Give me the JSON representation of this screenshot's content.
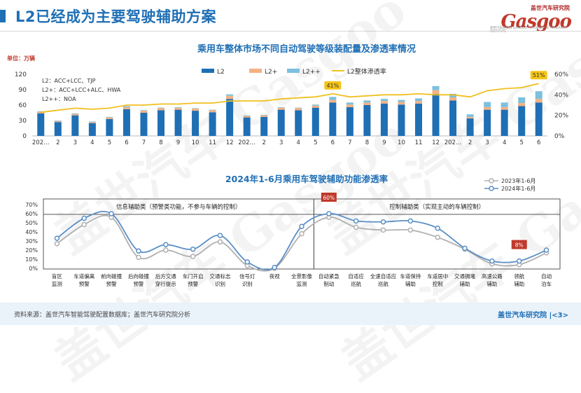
{
  "header": {
    "title": "L2已经成为主要驾驶辅助方案",
    "logo_top": "盖世汽车研究院",
    "logo_word": "Gasgoo",
    "logo_sub": "盖世汽车研究院 GASGOO AUTOMOTIVE RESEARCH INSTITUTE"
  },
  "watermark": "盖世汽车 Gasgoo",
  "footer": {
    "source": "资料来源：盖世汽车智能驾驶配置数据库；盖世汽车研究院分析",
    "page": "盖世汽车研究院 |<3>"
  },
  "chart_data": [
    {
      "type": "bar",
      "title": "乘用车整体市场不同自动驾驶等级装配量及渗透率情况",
      "unit_label": "单位：万辆",
      "ylim": [
        0,
        120
      ],
      "yticks": [
        0,
        30,
        60,
        90,
        120
      ],
      "y2lim": [
        0,
        0.6
      ],
      "y2ticks": [
        "0%",
        "20%",
        "40%",
        "60%"
      ],
      "categories": [
        "2022年1月",
        "2",
        "3",
        "4",
        "5",
        "6",
        "7",
        "8",
        "9",
        "10",
        "11",
        "12",
        "2023年1月",
        "2",
        "3",
        "4",
        "5",
        "6",
        "7",
        "8",
        "9",
        "10",
        "11",
        "12",
        "2024年1月",
        "2",
        "3",
        "4",
        "5",
        "6"
      ],
      "category_labels": [
        "202…",
        "2",
        "3",
        "4",
        "5",
        "6",
        "7",
        "8",
        "9",
        "10",
        "11",
        "12",
        "202…",
        "2",
        "3",
        "4",
        "5",
        "6",
        "7",
        "8",
        "9",
        "10",
        "11",
        "12",
        "202…",
        "2",
        "3",
        "4",
        "5",
        "6"
      ],
      "series": [
        {
          "name": "L2",
          "color": "#1f6fb5",
          "values": [
            44,
            27,
            40,
            25,
            33,
            52,
            45,
            50,
            51,
            49,
            46,
            72,
            36,
            37,
            51,
            50,
            55,
            65,
            56,
            60,
            63,
            61,
            63,
            82,
            69,
            34,
            51,
            51,
            58,
            65
          ]
        },
        {
          "name": "L2+",
          "color": "#f4b183",
          "values": [
            3,
            2,
            3,
            2,
            3,
            4,
            4,
            4,
            4,
            4,
            4,
            6,
            3,
            3,
            4,
            4,
            4,
            5,
            5,
            5,
            5,
            5,
            5,
            7,
            6,
            3,
            5,
            5,
            6,
            7
          ]
        },
        {
          "name": "L2++",
          "color": "#7cc0de",
          "values": [
            1,
            1,
            1,
            1,
            1,
            2,
            1,
            1,
            1,
            1,
            1,
            3,
            1,
            1,
            1,
            1,
            2,
            6,
            4,
            4,
            4,
            4,
            5,
            8,
            7,
            5,
            10,
            9,
            11,
            15
          ]
        }
      ],
      "line": {
        "name": "L2整体渗透率",
        "color": "#f0c020",
        "values": [
          0.23,
          0.25,
          0.27,
          0.26,
          0.27,
          0.3,
          0.3,
          0.31,
          0.31,
          0.32,
          0.32,
          0.34,
          0.34,
          0.34,
          0.36,
          0.37,
          0.38,
          0.41,
          0.38,
          0.39,
          0.4,
          0.4,
          0.41,
          0.4,
          0.4,
          0.38,
          0.44,
          0.46,
          0.47,
          0.51
        ]
      },
      "labels": {
        "point_17": "41%",
        "point_29": "51%"
      },
      "notes": [
        "L2：ACC+LCC、TJP",
        "L2+：ACC+LCC+ALC、HWA",
        "L2++：NOA"
      ]
    },
    {
      "type": "line",
      "title": "2024年1-6月乘用车驾驶辅助功能渗透率",
      "ylim": [
        0,
        0.7
      ],
      "yticks": [
        "0%",
        "10%",
        "20%",
        "30%",
        "40%",
        "50%",
        "60%",
        "70%"
      ],
      "categories": [
        "盲区\n监测",
        "车道偏离\n预警",
        "前向碰撞\n预警",
        "后向碰撞\n预警",
        "后方交通\n穿行提示",
        "车门开启\n预警",
        "交通标志\n识别",
        "信号灯\n识别",
        "夜视",
        "全景影像\n监测",
        "自动紧急\n制动",
        "自适应\n巡航",
        "全速自适应\n巡航",
        "车道保持\n辅助",
        "车道居中\n控制",
        "交通拥堵\n辅助",
        "高速公路\n辅助",
        "领航\n辅助",
        "自动\n泊车"
      ],
      "series": [
        {
          "name": "2023年1-6月",
          "color": "#b0b0b0",
          "values": [
            0.27,
            0.48,
            0.56,
            0.12,
            0.2,
            0.13,
            0.29,
            0.03,
            0.0,
            0.38,
            0.56,
            0.45,
            0.42,
            0.42,
            0.34,
            0.21,
            0.05,
            0.04,
            0.17
          ]
        },
        {
          "name": "2024年1-6月",
          "color": "#5b8fc6",
          "values": [
            0.33,
            0.55,
            0.6,
            0.19,
            0.26,
            0.21,
            0.36,
            0.07,
            0.01,
            0.46,
            0.6,
            0.52,
            0.51,
            0.52,
            0.44,
            0.22,
            0.08,
            0.08,
            0.2
          ]
        }
      ],
      "groups": [
        {
          "label": "信息辅助类（预警类功能，不参与车辆的控制）"
        },
        {
          "label": "控制辅助类（实现主动的车辆控制）"
        }
      ],
      "callouts": {
        "index_10": "60%",
        "index_17": "8%"
      }
    }
  ]
}
